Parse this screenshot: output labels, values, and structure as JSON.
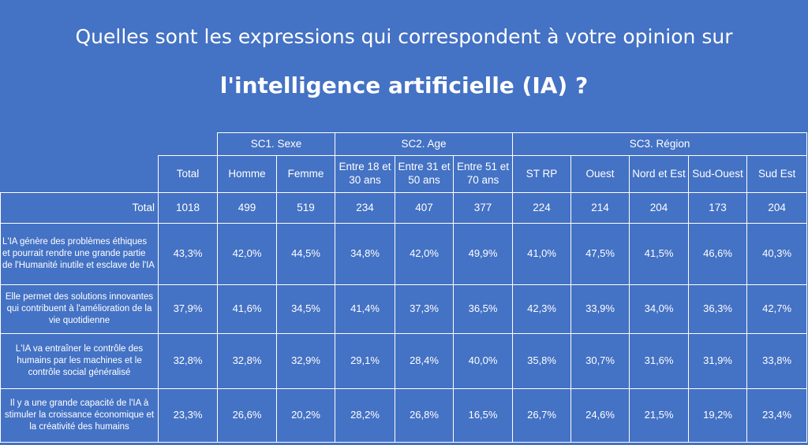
{
  "title": {
    "line1": "Quelles sont les expressions qui correspondent à votre opinion sur",
    "line2": "l'intelligence artificielle (IA) ?"
  },
  "groups": [
    "SC1. Sexe",
    "SC2. Age",
    "SC3. Région"
  ],
  "columns": [
    "Total",
    "Homme",
    "Femme",
    "Entre 18 et 30 ans",
    "Entre 31 et 50 ans",
    "Entre 51 et 70 ans",
    "ST RP",
    "Ouest",
    "Nord et Est",
    "Sud-Ouest",
    "Sud Est"
  ],
  "total_row": {
    "label": "Total",
    "values": [
      "1018",
      "499",
      "519",
      "234",
      "407",
      "377",
      "224",
      "214",
      "204",
      "173",
      "204"
    ]
  },
  "rows": [
    {
      "label": "L'IA génère des problèmes éthiques et pourrait rendre une grande partie de l'Humanité inutile et esclave de l'IA",
      "values": [
        "43,3%",
        "42,0%",
        "44,5%",
        "34,8%",
        "42,0%",
        "49,9%",
        "41,0%",
        "47,5%",
        "41,5%",
        "46,6%",
        "40,3%"
      ]
    },
    {
      "label": "Elle permet des solutions innovantes qui contribuent à l'amélioration de la vie quotidienne",
      "values": [
        "37,9%",
        "41,6%",
        "34,5%",
        "41,4%",
        "37,3%",
        "36,5%",
        "42,3%",
        "33,9%",
        "34,0%",
        "36,3%",
        "42,7%"
      ]
    },
    {
      "label": "L'IA va entraîner le contrôle des humains par les machines et le contrôle social généralisé",
      "values": [
        "32,8%",
        "32,8%",
        "32,9%",
        "29,1%",
        "28,4%",
        "40,0%",
        "35,8%",
        "30,7%",
        "31,6%",
        "31,9%",
        "33,8%"
      ]
    },
    {
      "label": "Il y a une grande capacité de l'IA à stimuler la croissance économique et la créativité des humains",
      "values": [
        "23,3%",
        "26,6%",
        "20,2%",
        "28,2%",
        "26,8%",
        "16,5%",
        "26,7%",
        "24,6%",
        "21,5%",
        "19,2%",
        "23,4%"
      ]
    }
  ]
}
